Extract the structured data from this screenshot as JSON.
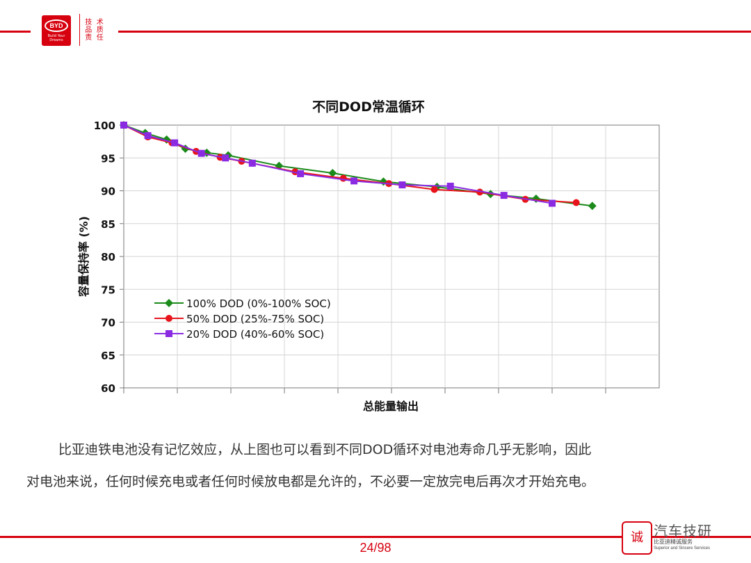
{
  "header": {
    "logo_text": "BYD",
    "logo_tagline": "Build Your Dreams",
    "motto_chars": [
      "技",
      "术",
      "品",
      "质",
      "责",
      "任"
    ]
  },
  "chart_data": {
    "type": "line",
    "title": "不同DOD常温循环",
    "xlabel": "总能量输出",
    "ylabel": "容量保持率 (%)",
    "ylim": [
      60,
      100
    ],
    "yticks": [
      100,
      95,
      90,
      85,
      80,
      75,
      70,
      65,
      60
    ],
    "xlim": [
      0,
      10
    ],
    "x_tick_labels_shown": false,
    "grid": true,
    "legend_position": "lower-left",
    "series": [
      {
        "name": "100% DOD (0%-100% SOC)",
        "color": "#1a8a1a",
        "marker": "diamond",
        "x": [
          0,
          0.4,
          0.8,
          1.15,
          1.55,
          1.95,
          2.9,
          3.9,
          4.85,
          5.85,
          6.85,
          7.7,
          8.75
        ],
        "y": [
          100,
          98.8,
          97.8,
          96.4,
          95.8,
          95.4,
          93.8,
          92.7,
          91.4,
          90.6,
          89.5,
          88.8,
          87.7
        ]
      },
      {
        "name": "50% DOD (25%-75% SOC)",
        "color": "#e8141c",
        "marker": "circle",
        "x": [
          0,
          0.45,
          0.9,
          1.35,
          1.8,
          2.2,
          3.2,
          4.1,
          4.95,
          5.8,
          6.65,
          7.5,
          8.45
        ],
        "y": [
          100,
          98.2,
          97.3,
          96.0,
          95.1,
          94.5,
          92.9,
          91.9,
          91.1,
          90.2,
          89.8,
          88.7,
          88.2
        ]
      },
      {
        "name": "20% DOD (40%-60% SOC)",
        "color": "#8a2be2",
        "marker": "square",
        "x": [
          0,
          0.45,
          0.95,
          1.45,
          1.9,
          2.4,
          3.3,
          4.3,
          5.2,
          6.1,
          7.1,
          8.0
        ],
        "y": [
          100,
          98.4,
          97.3,
          95.7,
          95.0,
          94.2,
          92.6,
          91.5,
          90.9,
          90.7,
          89.3,
          88.1
        ]
      }
    ]
  },
  "paragraph": {
    "line1": "比亚迪铁电池没有记忆效应，从上图也可以看到不同DOD循环对电池寿命几乎无影响，因此",
    "line2": "对电池来说，任何时候充电或者任何时候放电都是允许的，不必要一定放完电后再次才开始充电。"
  },
  "footer": {
    "page_number": "24/98"
  },
  "watermark": {
    "title": "汽车技研",
    "sub1": "比亚迪精诚服务",
    "sub2": "Superior and Sincere Services"
  }
}
